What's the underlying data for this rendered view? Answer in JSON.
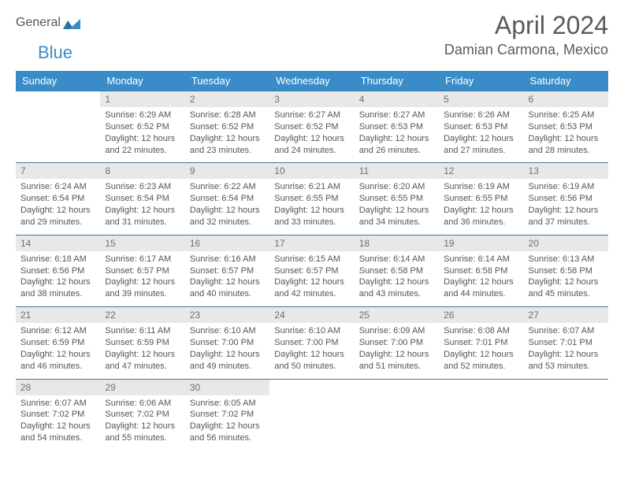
{
  "logo": {
    "part1": "General",
    "part2": "Blue"
  },
  "title": "April 2024",
  "location": "Damian Carmona, Mexico",
  "colors": {
    "header_bg": "#3a8cc9",
    "header_text": "#ffffff",
    "daynum_bg": "#e8e8e8",
    "text": "#555555",
    "row_border": "#3a7aa6"
  },
  "daysOfWeek": [
    "Sunday",
    "Monday",
    "Tuesday",
    "Wednesday",
    "Thursday",
    "Friday",
    "Saturday"
  ],
  "weeks": [
    [
      {
        "num": "",
        "lines": []
      },
      {
        "num": "1",
        "lines": [
          "Sunrise: 6:29 AM",
          "Sunset: 6:52 PM",
          "Daylight: 12 hours and 22 minutes."
        ]
      },
      {
        "num": "2",
        "lines": [
          "Sunrise: 6:28 AM",
          "Sunset: 6:52 PM",
          "Daylight: 12 hours and 23 minutes."
        ]
      },
      {
        "num": "3",
        "lines": [
          "Sunrise: 6:27 AM",
          "Sunset: 6:52 PM",
          "Daylight: 12 hours and 24 minutes."
        ]
      },
      {
        "num": "4",
        "lines": [
          "Sunrise: 6:27 AM",
          "Sunset: 6:53 PM",
          "Daylight: 12 hours and 26 minutes."
        ]
      },
      {
        "num": "5",
        "lines": [
          "Sunrise: 6:26 AM",
          "Sunset: 6:53 PM",
          "Daylight: 12 hours and 27 minutes."
        ]
      },
      {
        "num": "6",
        "lines": [
          "Sunrise: 6:25 AM",
          "Sunset: 6:53 PM",
          "Daylight: 12 hours and 28 minutes."
        ]
      }
    ],
    [
      {
        "num": "7",
        "lines": [
          "Sunrise: 6:24 AM",
          "Sunset: 6:54 PM",
          "Daylight: 12 hours and 29 minutes."
        ]
      },
      {
        "num": "8",
        "lines": [
          "Sunrise: 6:23 AM",
          "Sunset: 6:54 PM",
          "Daylight: 12 hours and 31 minutes."
        ]
      },
      {
        "num": "9",
        "lines": [
          "Sunrise: 6:22 AM",
          "Sunset: 6:54 PM",
          "Daylight: 12 hours and 32 minutes."
        ]
      },
      {
        "num": "10",
        "lines": [
          "Sunrise: 6:21 AM",
          "Sunset: 6:55 PM",
          "Daylight: 12 hours and 33 minutes."
        ]
      },
      {
        "num": "11",
        "lines": [
          "Sunrise: 6:20 AM",
          "Sunset: 6:55 PM",
          "Daylight: 12 hours and 34 minutes."
        ]
      },
      {
        "num": "12",
        "lines": [
          "Sunrise: 6:19 AM",
          "Sunset: 6:55 PM",
          "Daylight: 12 hours and 36 minutes."
        ]
      },
      {
        "num": "13",
        "lines": [
          "Sunrise: 6:19 AM",
          "Sunset: 6:56 PM",
          "Daylight: 12 hours and 37 minutes."
        ]
      }
    ],
    [
      {
        "num": "14",
        "lines": [
          "Sunrise: 6:18 AM",
          "Sunset: 6:56 PM",
          "Daylight: 12 hours and 38 minutes."
        ]
      },
      {
        "num": "15",
        "lines": [
          "Sunrise: 6:17 AM",
          "Sunset: 6:57 PM",
          "Daylight: 12 hours and 39 minutes."
        ]
      },
      {
        "num": "16",
        "lines": [
          "Sunrise: 6:16 AM",
          "Sunset: 6:57 PM",
          "Daylight: 12 hours and 40 minutes."
        ]
      },
      {
        "num": "17",
        "lines": [
          "Sunrise: 6:15 AM",
          "Sunset: 6:57 PM",
          "Daylight: 12 hours and 42 minutes."
        ]
      },
      {
        "num": "18",
        "lines": [
          "Sunrise: 6:14 AM",
          "Sunset: 6:58 PM",
          "Daylight: 12 hours and 43 minutes."
        ]
      },
      {
        "num": "19",
        "lines": [
          "Sunrise: 6:14 AM",
          "Sunset: 6:58 PM",
          "Daylight: 12 hours and 44 minutes."
        ]
      },
      {
        "num": "20",
        "lines": [
          "Sunrise: 6:13 AM",
          "Sunset: 6:58 PM",
          "Daylight: 12 hours and 45 minutes."
        ]
      }
    ],
    [
      {
        "num": "21",
        "lines": [
          "Sunrise: 6:12 AM",
          "Sunset: 6:59 PM",
          "Daylight: 12 hours and 46 minutes."
        ]
      },
      {
        "num": "22",
        "lines": [
          "Sunrise: 6:11 AM",
          "Sunset: 6:59 PM",
          "Daylight: 12 hours and 47 minutes."
        ]
      },
      {
        "num": "23",
        "lines": [
          "Sunrise: 6:10 AM",
          "Sunset: 7:00 PM",
          "Daylight: 12 hours and 49 minutes."
        ]
      },
      {
        "num": "24",
        "lines": [
          "Sunrise: 6:10 AM",
          "Sunset: 7:00 PM",
          "Daylight: 12 hours and 50 minutes."
        ]
      },
      {
        "num": "25",
        "lines": [
          "Sunrise: 6:09 AM",
          "Sunset: 7:00 PM",
          "Daylight: 12 hours and 51 minutes."
        ]
      },
      {
        "num": "26",
        "lines": [
          "Sunrise: 6:08 AM",
          "Sunset: 7:01 PM",
          "Daylight: 12 hours and 52 minutes."
        ]
      },
      {
        "num": "27",
        "lines": [
          "Sunrise: 6:07 AM",
          "Sunset: 7:01 PM",
          "Daylight: 12 hours and 53 minutes."
        ]
      }
    ],
    [
      {
        "num": "28",
        "lines": [
          "Sunrise: 6:07 AM",
          "Sunset: 7:02 PM",
          "Daylight: 12 hours and 54 minutes."
        ]
      },
      {
        "num": "29",
        "lines": [
          "Sunrise: 6:06 AM",
          "Sunset: 7:02 PM",
          "Daylight: 12 hours and 55 minutes."
        ]
      },
      {
        "num": "30",
        "lines": [
          "Sunrise: 6:05 AM",
          "Sunset: 7:02 PM",
          "Daylight: 12 hours and 56 minutes."
        ]
      },
      {
        "num": "",
        "lines": []
      },
      {
        "num": "",
        "lines": []
      },
      {
        "num": "",
        "lines": []
      },
      {
        "num": "",
        "lines": []
      }
    ]
  ]
}
